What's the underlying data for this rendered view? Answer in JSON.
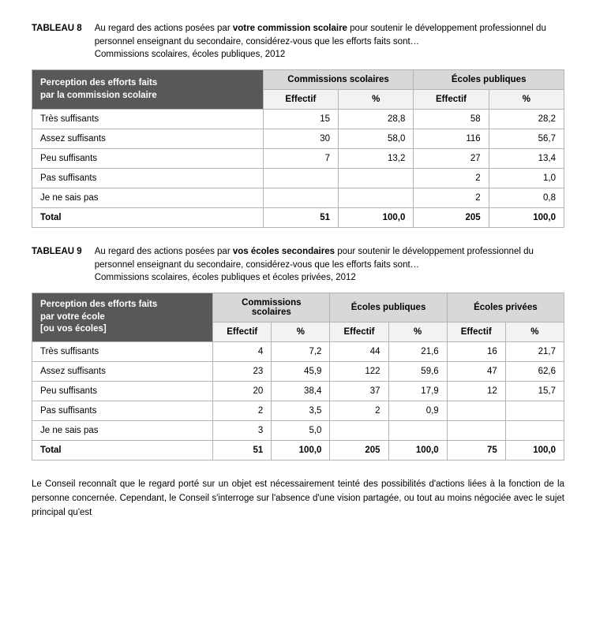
{
  "tableau8": {
    "label": "TABLEAU 8",
    "desc_before": "Au regard des actions posées par ",
    "desc_bold": "votre commission scolaire",
    "desc_after": " pour soutenir le développement professionnel du personnel enseignant du secondaire, considérez-vous que les efforts faits sont…",
    "desc_line3": "Commissions scolaires, écoles publiques, 2012",
    "header_rowlabel1": "Perception des efforts faits",
    "header_rowlabel2": "par la commission scolaire",
    "group1": "Commissions scolaires",
    "group2": "Écoles publiques",
    "sub_eff": "Effectif",
    "sub_pct": "%",
    "rows": [
      {
        "label": "Très suffisants",
        "e1": "15",
        "p1": "28,8",
        "e2": "58",
        "p2": "28,2"
      },
      {
        "label": "Assez suffisants",
        "e1": "30",
        "p1": "58,0",
        "e2": "116",
        "p2": "56,7"
      },
      {
        "label": "Peu suffisants",
        "e1": "7",
        "p1": "13,2",
        "e2": "27",
        "p2": "13,4"
      },
      {
        "label": "Pas suffisants",
        "e1": "",
        "p1": "",
        "e2": "2",
        "p2": "1,0"
      },
      {
        "label": "Je ne sais pas",
        "e1": "",
        "p1": "",
        "e2": "2",
        "p2": "0,8"
      }
    ],
    "total": {
      "label": "Total",
      "e1": "51",
      "p1": "100,0",
      "e2": "205",
      "p2": "100,0"
    }
  },
  "tableau9": {
    "label": "TABLEAU 9",
    "desc_before": "Au regard des actions posées par ",
    "desc_bold": "vos écoles secondaires",
    "desc_after": " pour soutenir le développement professionnel du personnel enseignant du secondaire, considérez-vous que les efforts faits sont…",
    "desc_line3": "Commissions scolaires, écoles publiques et écoles privées, 2012",
    "header_rowlabel1": "Perception des efforts faits",
    "header_rowlabel2": "par votre école",
    "header_rowlabel3": "[ou vos écoles]",
    "group1": "Commissions scolaires",
    "group2": "Écoles publiques",
    "group3": "Écoles privées",
    "sub_eff": "Effectif",
    "sub_pct": "%",
    "rows": [
      {
        "label": "Très suffisants",
        "e1": "4",
        "p1": "7,2",
        "e2": "44",
        "p2": "21,6",
        "e3": "16",
        "p3": "21,7"
      },
      {
        "label": "Assez suffisants",
        "e1": "23",
        "p1": "45,9",
        "e2": "122",
        "p2": "59,6",
        "e3": "47",
        "p3": "62,6"
      },
      {
        "label": "Peu suffisants",
        "e1": "20",
        "p1": "38,4",
        "e2": "37",
        "p2": "17,9",
        "e3": "12",
        "p3": "15,7"
      },
      {
        "label": "Pas suffisants",
        "e1": "2",
        "p1": "3,5",
        "e2": "2",
        "p2": "0,9",
        "e3": "",
        "p3": ""
      },
      {
        "label": "Je ne sais pas",
        "e1": "3",
        "p1": "5,0",
        "e2": "",
        "p2": "",
        "e3": "",
        "p3": ""
      }
    ],
    "total": {
      "label": "Total",
      "e1": "51",
      "p1": "100,0",
      "e2": "205",
      "p2": "100,0",
      "e3": "75",
      "p3": "100,0"
    }
  },
  "bodytext": "Le Conseil reconnaît que le regard porté sur un objet est nécessairement teinté des possibilités d'actions liées à la fonction de la personne concernée. Cependant, le Conseil s'interroge sur l'absence d'une vision partagée, ou tout au moins négociée avec le sujet principal qu'est"
}
